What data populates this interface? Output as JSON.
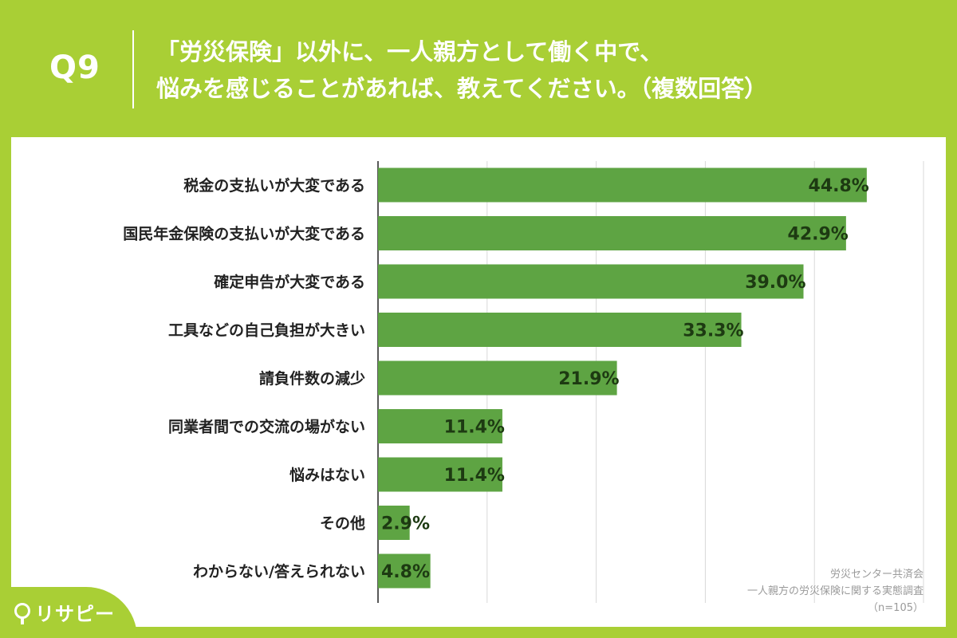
{
  "header": {
    "question_number": "Q9",
    "title_line1": "「労災保険」以外に、一人親方として働く中で、",
    "title_line2": "悩みを感じることがあれば、教えてください。（複数回答）"
  },
  "chart_data": {
    "type": "bar",
    "orientation": "horizontal",
    "categories": [
      "税金の支払いが大変である",
      "国民年金保険の支払いが大変である",
      "確定申告が大変である",
      "工具などの自己負担が大きい",
      "請負件数の減少",
      "同業者間での交流の場がない",
      "悩みはない",
      "その他",
      "わからない/答えられない"
    ],
    "values": [
      44.8,
      42.9,
      39.0,
      33.3,
      21.9,
      11.4,
      11.4,
      2.9,
      4.8
    ],
    "value_labels": [
      "44.8%",
      "42.9%",
      "39.0%",
      "33.3%",
      "21.9%",
      "11.4%",
      "11.4%",
      "2.9%",
      "4.8%"
    ],
    "xlim": [
      0,
      50
    ],
    "grid": true,
    "bar_color": "#5ea443",
    "label_color": "#1d3a12"
  },
  "source": {
    "line1": "労災センター共済会",
    "line2": "一人親方の労災保険に関する実態調査",
    "line3": "（n=105）"
  },
  "logo": {
    "text": "リサピー"
  },
  "colors": {
    "background": "#a9cf35",
    "panel": "#ffffff",
    "grid": "#d9d9d9"
  }
}
